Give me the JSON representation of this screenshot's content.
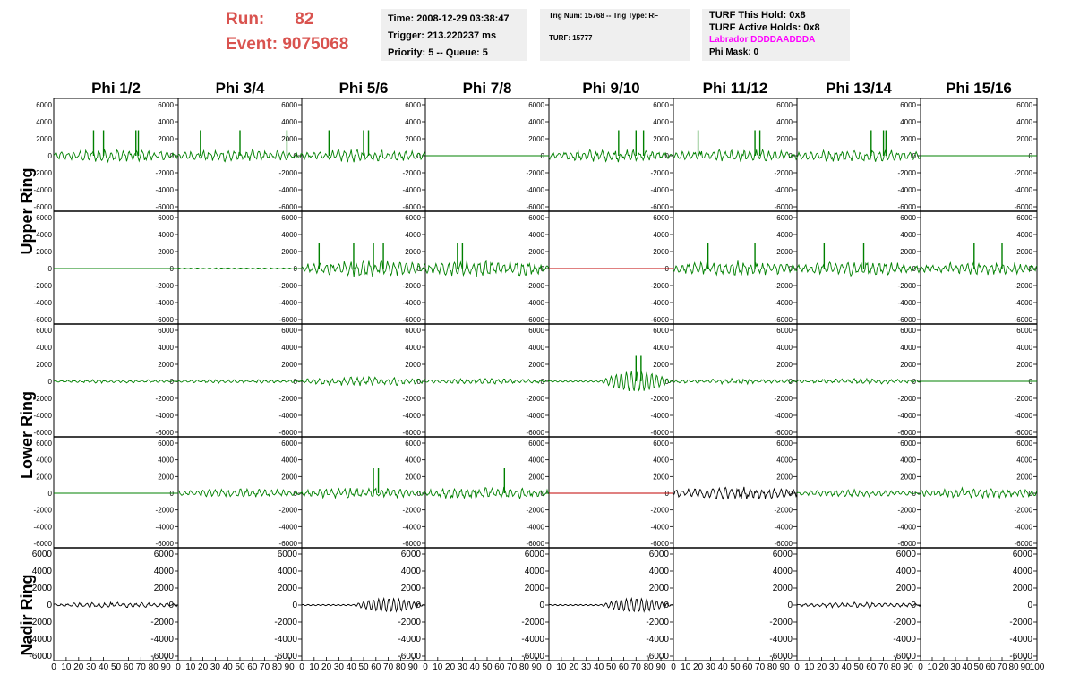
{
  "header": {
    "run_label": "Run:",
    "run_value": "82",
    "event_label": "Event:",
    "event_value": "9075068",
    "accent_color": "#d9534f"
  },
  "time_box": {
    "time": "Time: 2008-12-29 03:38:47",
    "trigger": "Trigger: 213.220237 ms",
    "priority": "Priority: 5 -- Queue: 5"
  },
  "trig_box": {
    "trig": "Trig Num: 15768 -- Trig Type: RF",
    "turf": "TURF: 15777"
  },
  "turf_box": {
    "hold": "TURF This Hold: 0x8",
    "active": "TURF Active Holds: 0x8",
    "labrador": "Labrador DDDDAADDDA",
    "labrador_color": "#ff00ff",
    "phi_mask": "Phi Mask: 0"
  },
  "chart_data": {
    "type": "line",
    "columns": [
      "Phi 1/2",
      "Phi 3/4",
      "Phi 5/6",
      "Phi 7/8",
      "Phi 9/10",
      "Phi 11/12",
      "Phi 13/14",
      "Phi 15/16"
    ],
    "rows": [
      "Upper Ring",
      "Lower Ring",
      "Nadir Ring"
    ],
    "y_ticks": [
      6000,
      4000,
      2000,
      0,
      -2000,
      -4000,
      -6000
    ],
    "x_ticks": [
      0,
      10,
      20,
      30,
      40,
      50,
      60,
      70,
      80,
      90,
      100
    ],
    "ylim": [
      -6000,
      6000
    ],
    "xlim": [
      0,
      100
    ],
    "colors": {
      "normal": "#008000",
      "dead": "#c00000",
      "nadir": "#000000"
    },
    "panels": [
      {
        "row": 0,
        "col": 0,
        "kind": "wave",
        "color": "normal",
        "amp": 700,
        "spikes": [
          32,
          40,
          66,
          68
        ]
      },
      {
        "row": 0,
        "col": 1,
        "kind": "wave",
        "color": "normal",
        "amp": 700,
        "spikes": [
          18,
          50,
          88
        ]
      },
      {
        "row": 0,
        "col": 2,
        "kind": "wave",
        "color": "normal",
        "amp": 700,
        "spikes": [
          22,
          50,
          54
        ]
      },
      {
        "row": 0,
        "col": 3,
        "kind": "flat",
        "color": "normal",
        "amp": 0,
        "spikes": []
      },
      {
        "row": 0,
        "col": 4,
        "kind": "wave",
        "color": "normal",
        "amp": 700,
        "spikes": [
          56,
          70,
          76
        ]
      },
      {
        "row": 0,
        "col": 5,
        "kind": "wave",
        "color": "normal",
        "amp": 700,
        "spikes": [
          20,
          66,
          70
        ]
      },
      {
        "row": 0,
        "col": 6,
        "kind": "wave",
        "color": "normal",
        "amp": 700,
        "spikes": [
          60,
          70,
          72
        ]
      },
      {
        "row": 0,
        "col": 7,
        "kind": "flat",
        "color": "normal",
        "amp": 0,
        "spikes": []
      },
      {
        "row": 1,
        "col": 0,
        "kind": "flat",
        "color": "normal",
        "amp": 0,
        "spikes": []
      },
      {
        "row": 1,
        "col": 1,
        "kind": "wave",
        "color": "normal",
        "amp": 80,
        "spikes": []
      },
      {
        "row": 1,
        "col": 2,
        "kind": "wave",
        "color": "normal",
        "amp": 900,
        "spikes": [
          14,
          42,
          58,
          66
        ]
      },
      {
        "row": 1,
        "col": 3,
        "kind": "wave",
        "color": "normal",
        "amp": 900,
        "spikes": [
          26,
          30
        ]
      },
      {
        "row": 1,
        "col": 4,
        "kind": "flat",
        "color": "dead",
        "amp": 0,
        "spikes": []
      },
      {
        "row": 1,
        "col": 5,
        "kind": "wave",
        "color": "normal",
        "amp": 800,
        "spikes": [
          28,
          66
        ]
      },
      {
        "row": 1,
        "col": 6,
        "kind": "wave",
        "color": "normal",
        "amp": 800,
        "spikes": [
          22,
          54
        ]
      },
      {
        "row": 1,
        "col": 7,
        "kind": "wave",
        "color": "normal",
        "amp": 700,
        "spikes": [
          46,
          70
        ]
      },
      {
        "row": 2,
        "col": 0,
        "kind": "wave",
        "color": "normal",
        "amp": 200,
        "spikes": []
      },
      {
        "row": 2,
        "col": 1,
        "kind": "wave",
        "color": "normal",
        "amp": 200,
        "spikes": []
      },
      {
        "row": 2,
        "col": 2,
        "kind": "wave",
        "color": "normal",
        "amp": 500,
        "spikes": []
      },
      {
        "row": 2,
        "col": 3,
        "kind": "wave",
        "color": "normal",
        "amp": 300,
        "spikes": []
      },
      {
        "row": 2,
        "col": 4,
        "kind": "burst",
        "color": "normal",
        "amp": 1200,
        "spikes": [
          70,
          74
        ]
      },
      {
        "row": 2,
        "col": 5,
        "kind": "wave",
        "color": "normal",
        "amp": 300,
        "spikes": []
      },
      {
        "row": 2,
        "col": 6,
        "kind": "wave",
        "color": "normal",
        "amp": 300,
        "spikes": []
      },
      {
        "row": 2,
        "col": 7,
        "kind": "flat",
        "color": "normal",
        "amp": 0,
        "spikes": []
      },
      {
        "row": 3,
        "col": 0,
        "kind": "flat",
        "color": "normal",
        "amp": 0,
        "spikes": []
      },
      {
        "row": 3,
        "col": 1,
        "kind": "wave",
        "color": "normal",
        "amp": 500,
        "spikes": []
      },
      {
        "row": 3,
        "col": 2,
        "kind": "wave",
        "color": "normal",
        "amp": 600,
        "spikes": [
          58,
          62
        ]
      },
      {
        "row": 3,
        "col": 3,
        "kind": "wave",
        "color": "normal",
        "amp": 700,
        "spikes": [
          64
        ]
      },
      {
        "row": 3,
        "col": 4,
        "kind": "flat",
        "color": "dead",
        "amp": 0,
        "spikes": []
      },
      {
        "row": 3,
        "col": 5,
        "kind": "wave",
        "color": "nadir",
        "amp": 700,
        "spikes": []
      },
      {
        "row": 3,
        "col": 6,
        "kind": "wave",
        "color": "normal",
        "amp": 400,
        "spikes": []
      },
      {
        "row": 3,
        "col": 7,
        "kind": "wave",
        "color": "normal",
        "amp": 600,
        "spikes": []
      },
      {
        "row": 4,
        "col": 0,
        "kind": "wave",
        "color": "nadir",
        "amp": 300,
        "spikes": []
      },
      {
        "row": 4,
        "col": 2,
        "kind": "burst",
        "color": "nadir",
        "amp": 800,
        "spikes": []
      },
      {
        "row": 4,
        "col": 4,
        "kind": "burst",
        "color": "nadir",
        "amp": 800,
        "spikes": []
      },
      {
        "row": 4,
        "col": 6,
        "kind": "wave",
        "color": "nadir",
        "amp": 300,
        "spikes": []
      }
    ]
  }
}
